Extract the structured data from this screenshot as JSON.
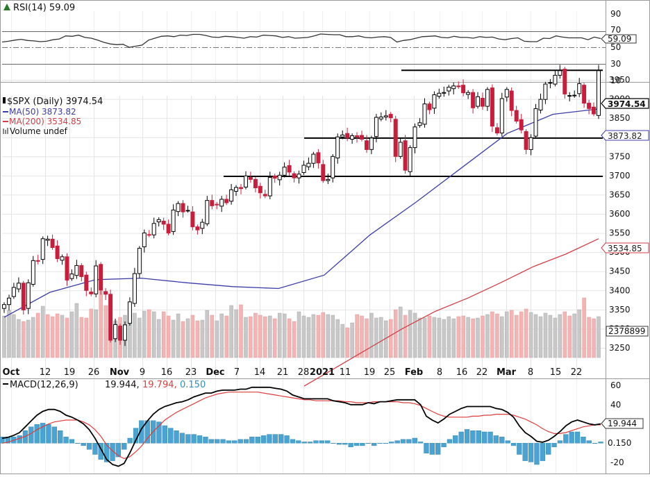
{
  "chart_data": [
    {
      "type": "line",
      "panel": "rsi",
      "title": "RSI(14) 59.09",
      "current_value": "59.09",
      "y_ticks": [
        "90",
        "70",
        "50",
        "30",
        "10"
      ],
      "ylim": [
        0,
        100
      ],
      "overbought": 70,
      "oversold": 30,
      "midline": 50,
      "values": [
        50,
        52,
        55,
        57,
        54,
        53,
        51,
        52,
        56,
        58,
        66,
        65,
        68,
        62,
        60,
        55,
        49,
        45,
        43,
        44,
        36,
        39,
        42,
        55,
        60,
        65,
        66,
        64,
        68,
        67,
        70,
        70,
        67,
        63,
        62,
        65,
        64,
        62,
        60,
        64,
        63,
        68,
        67,
        66,
        62,
        64,
        60,
        61,
        62,
        66,
        71,
        70,
        69,
        69,
        64,
        64,
        66,
        62,
        61,
        63,
        64,
        62,
        50,
        54,
        56,
        60,
        64,
        65,
        66,
        62,
        61,
        65,
        62,
        62,
        60,
        64,
        62,
        63,
        58,
        56,
        59,
        61,
        52,
        51,
        51,
        60,
        59,
        66,
        63,
        61,
        61,
        61,
        56,
        63,
        59
      ]
    },
    {
      "type": "candlestick",
      "panel": "price",
      "title": "$SPX (Daily) 3974.54",
      "last_price_label": "3974.54",
      "x_tick_labels": [
        "Oct",
        "12",
        "19",
        "26",
        "Nov",
        "9",
        "16",
        "23",
        "Dec",
        "7",
        "14",
        "21",
        "28",
        "2021",
        "11",
        "19",
        "25",
        "Feb",
        "8",
        "16",
        "22",
        "Mar",
        "8",
        "15",
        "22"
      ],
      "bold_x_ticks": [
        "Oct",
        "Nov",
        "Dec",
        "2021",
        "Feb",
        "Mar"
      ],
      "y_ticks": [
        3250,
        3300,
        3350,
        3400,
        3450,
        3500,
        3550,
        3600,
        3650,
        3700,
        3750,
        3800,
        3850,
        3900,
        3950
      ],
      "ylim": [
        3210,
        3990
      ],
      "close": [
        3363,
        3380,
        3408,
        3419,
        3349,
        3420,
        3478,
        3477,
        3535,
        3534,
        3512,
        3483,
        3488,
        3427,
        3443,
        3465,
        3436,
        3400,
        3391,
        3464,
        3401,
        3390,
        3270,
        3311,
        3270,
        3310,
        3370,
        3444,
        3510,
        3550,
        3545,
        3575,
        3585,
        3573,
        3550,
        3610,
        3627,
        3605,
        3609,
        3566,
        3558,
        3578,
        3635,
        3621,
        3624,
        3638,
        3629,
        3663,
        3669,
        3666,
        3699,
        3690,
        3668,
        3655,
        3647,
        3695,
        3693,
        3701,
        3722,
        3709,
        3694,
        3704,
        3727,
        3732,
        3756,
        3733,
        3687,
        3690,
        3750,
        3801,
        3806,
        3799,
        3804,
        3801,
        3795,
        3768,
        3798,
        3852,
        3853,
        3856,
        3851,
        3750,
        3787,
        3714,
        3773,
        3827,
        3838,
        3887,
        3872,
        3911,
        3915,
        3917,
        3931,
        3934,
        3932,
        3916,
        3917,
        3877,
        3906,
        3881,
        3925,
        3829,
        3811,
        3901,
        3925,
        3870,
        3842,
        3819,
        3768,
        3799,
        3875,
        3899,
        3939,
        3943,
        3962,
        3974,
        3913,
        3909,
        3910,
        3940,
        3889,
        3875,
        3861,
        3974
      ]
    },
    {
      "type": "line",
      "panel": "price-overlay",
      "title": "MA(50) 3873.82",
      "current_value": "3873.82",
      "color": "#3c3ca8",
      "values": [
        3330,
        3395,
        3428,
        3432,
        3420,
        3410,
        3405,
        3440,
        3545,
        3630,
        3720,
        3810,
        3860,
        3874
      ]
    },
    {
      "type": "line",
      "panel": "price-overlay",
      "title": "MA(200) 3534.85",
      "current_value": "3534.85",
      "color": "#d23c46",
      "values": [
        3150,
        3200,
        3250,
        3300,
        3345,
        3380,
        3420,
        3462,
        3495,
        3535
      ]
    },
    {
      "type": "bar",
      "panel": "volume",
      "title": "Volume undef",
      "current_value": "2378899",
      "values": [
        3000,
        3400,
        3100,
        2750,
        2600,
        2700,
        2900,
        3200,
        3700,
        3100,
        2950,
        3150,
        3050,
        2850,
        3300,
        3900,
        2900,
        2850,
        3500,
        3450,
        4900,
        3750,
        3300,
        2650,
        2900,
        3050,
        3050,
        3200,
        2850,
        3350,
        3450,
        3300,
        2750,
        3300,
        3000,
        2700,
        3150,
        2600,
        2800,
        3050,
        2650,
        2700,
        3400,
        3050,
        2650,
        3150,
        3000,
        3750,
        3450,
        3800,
        2900,
        2950,
        3200,
        3050,
        2950,
        3000,
        2800,
        3200,
        3150,
        2800,
        2600,
        3300,
        3000,
        2900,
        3100,
        3050,
        3250,
        3100,
        3050,
        2750,
        2400,
        2150,
        2500,
        3100,
        3000,
        2800,
        3200,
        2850,
        2900,
        2650,
        2750,
        3450,
        3650,
        3050,
        3400,
        3200,
        2850,
        2850,
        3000,
        2900,
        2850,
        2750,
        2950,
        2800,
        2950,
        3000,
        2900,
        2800,
        2850,
        3000,
        3100,
        3300,
        3150,
        2950,
        3300,
        3400,
        3050,
        3300,
        3500,
        3250,
        3100,
        2950,
        3200,
        3050,
        2850,
        3100,
        3300,
        3000,
        3150,
        3450,
        4300,
        2900,
        2800,
        2950
      ],
      "color_up": "#c8c8c8",
      "color_down": "#f4b4b4"
    },
    {
      "type": "line",
      "panel": "macd",
      "title": "MACD(12,26,9)",
      "macd_value": "19.944",
      "signal_value": "19.794",
      "histogram_value": "0.150",
      "macd_label_value": "19.944",
      "hist_label_value": "0.150",
      "y_ticks": [
        "60",
        "40",
        "20",
        "-20"
      ],
      "ylim": [
        -26,
        64
      ],
      "macd": [
        5,
        6,
        8,
        11,
        17,
        23,
        29,
        33,
        35,
        35,
        33,
        29,
        27,
        24,
        20,
        14,
        5,
        -6,
        -17,
        -22,
        -24,
        -21,
        -10,
        3,
        15,
        23,
        30,
        35,
        38,
        40,
        42,
        43,
        45,
        48,
        50,
        52,
        52,
        54,
        55,
        55,
        55,
        56,
        56,
        58,
        58,
        58,
        58,
        57,
        56,
        54,
        50,
        48,
        46,
        46,
        46,
        46,
        46,
        44,
        43,
        42,
        40,
        40,
        40,
        42,
        41,
        43,
        43,
        44,
        45,
        45,
        45,
        45,
        40,
        28,
        24,
        21,
        25,
        30,
        33,
        36,
        38,
        38,
        38,
        38,
        38,
        36,
        35,
        32,
        27,
        18,
        11,
        7,
        2,
        1,
        3,
        7,
        12,
        18,
        22,
        24,
        22,
        20,
        19,
        20
      ],
      "signal": [
        0,
        1,
        3,
        5,
        7,
        10,
        14,
        17,
        20,
        22,
        23,
        24,
        24,
        24,
        22,
        19,
        14,
        7,
        -2,
        -8,
        -13,
        -16,
        -14,
        -9,
        -3,
        5,
        12,
        18,
        24,
        28,
        32,
        35,
        38,
        41,
        44,
        47,
        49,
        51,
        52,
        53,
        53,
        53,
        53,
        53,
        53,
        52,
        51,
        50,
        49,
        48,
        47,
        46,
        45,
        45,
        44,
        44,
        44,
        44,
        44,
        43,
        43,
        42,
        42,
        42,
        43,
        43,
        43,
        43,
        43,
        42,
        42,
        41,
        39,
        36,
        33,
        30,
        28,
        27,
        27,
        27,
        27,
        28,
        28,
        29,
        29,
        30,
        30,
        30,
        29,
        27,
        25,
        22,
        19,
        15,
        12,
        10,
        10,
        11,
        13,
        15,
        17,
        18,
        19,
        19
      ]
    }
  ]
}
